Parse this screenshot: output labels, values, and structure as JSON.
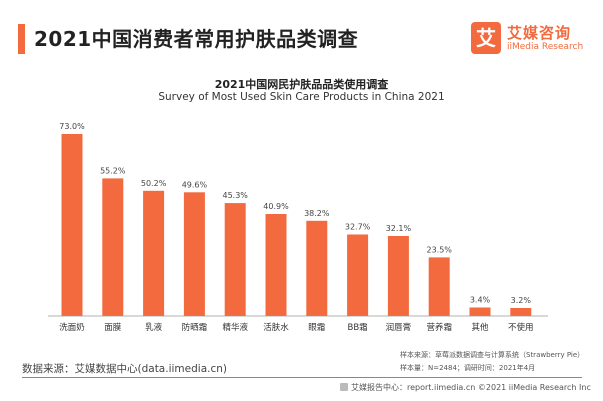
{
  "header": {
    "title": "2021中国消费者常用护肤品类调查",
    "logo_mark": "艾",
    "logo_cn": "艾媒咨询",
    "logo_en": "iiMedia Research"
  },
  "chart_data": {
    "type": "bar",
    "title": "2021中国网民护肤品品类使用调查",
    "subtitle": "Survey of Most Used Skin Care Products in China 2021",
    "categories": [
      "洗面奶",
      "面膜",
      "乳液",
      "防晒霜",
      "精华液",
      "活肤水",
      "眼霜",
      "BB霜",
      "润唇膏",
      "营养霜",
      "其他",
      "不使用"
    ],
    "values": [
      73.0,
      55.2,
      50.2,
      49.6,
      45.3,
      40.9,
      38.2,
      32.7,
      32.1,
      23.5,
      3.4,
      3.2
    ],
    "value_labels": [
      "73.0%",
      "55.2%",
      "50.2%",
      "49.6%",
      "45.3%",
      "40.9%",
      "38.2%",
      "32.7%",
      "32.1%",
      "23.5%",
      "3.4%",
      "3.2%"
    ],
    "unit": "%",
    "ylim": [
      0,
      73
    ],
    "xlabel": "",
    "ylabel": "",
    "grid": false,
    "bar_color": "#f26a3d"
  },
  "notes": {
    "sample_source": "样本来源：草莓派数据调查与计算系统（Strawberry Pie）",
    "sample_info": "样本量：N=2484；调研时间：2021年4月"
  },
  "source": "数据来源：艾媒数据中心(data.iimedia.cn)",
  "footer": "艾媒报告中心：report.iimedia.cn  ©2021  iiMedia Research  Inc"
}
